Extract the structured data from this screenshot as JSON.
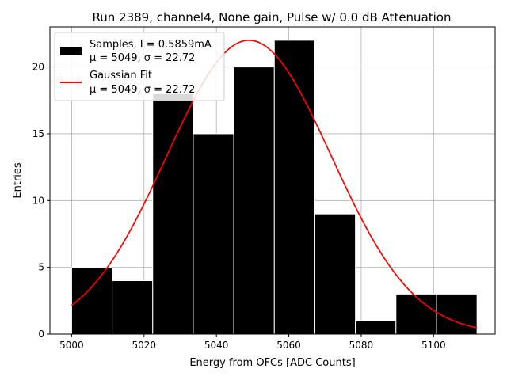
{
  "chart_data": {
    "type": "bar",
    "title": "Run 2389, channel4, None gain, Pulse w/ 0.0 dB Attenuation",
    "xlabel": "Energy from OFCs [ADC Counts]",
    "ylabel": "Entries",
    "xlim": [
      4994,
      5117
    ],
    "ylim": [
      0,
      23
    ],
    "grid": true,
    "legend_position": "top-left",
    "x_ticks": [
      5000,
      5020,
      5040,
      5060,
      5080,
      5100
    ],
    "y_ticks": [
      0,
      5,
      10,
      15,
      20
    ],
    "histogram": {
      "name": "Samples, I = 0.5859mA",
      "color": "#000000",
      "bin_edges": [
        5000,
        5011.2,
        5022.4,
        5033.6,
        5044.8,
        5056.0,
        5067.2,
        5078.4,
        5089.6,
        5100.8,
        5112
      ],
      "counts": [
        5,
        4,
        18,
        15,
        20,
        22,
        9,
        1,
        3,
        3
      ]
    },
    "fit": {
      "name": "Gaussian Fit",
      "color": "#ff0000",
      "mu": 5049,
      "sigma": 22.72,
      "amplitude": 22
    },
    "legend": [
      {
        "line1": "Samples, I = 0.5859mA",
        "line2": "μ = 5049, σ = 22.72"
      },
      {
        "line1": "Gaussian Fit",
        "line2": "μ = 5049, σ = 22.72"
      }
    ]
  }
}
